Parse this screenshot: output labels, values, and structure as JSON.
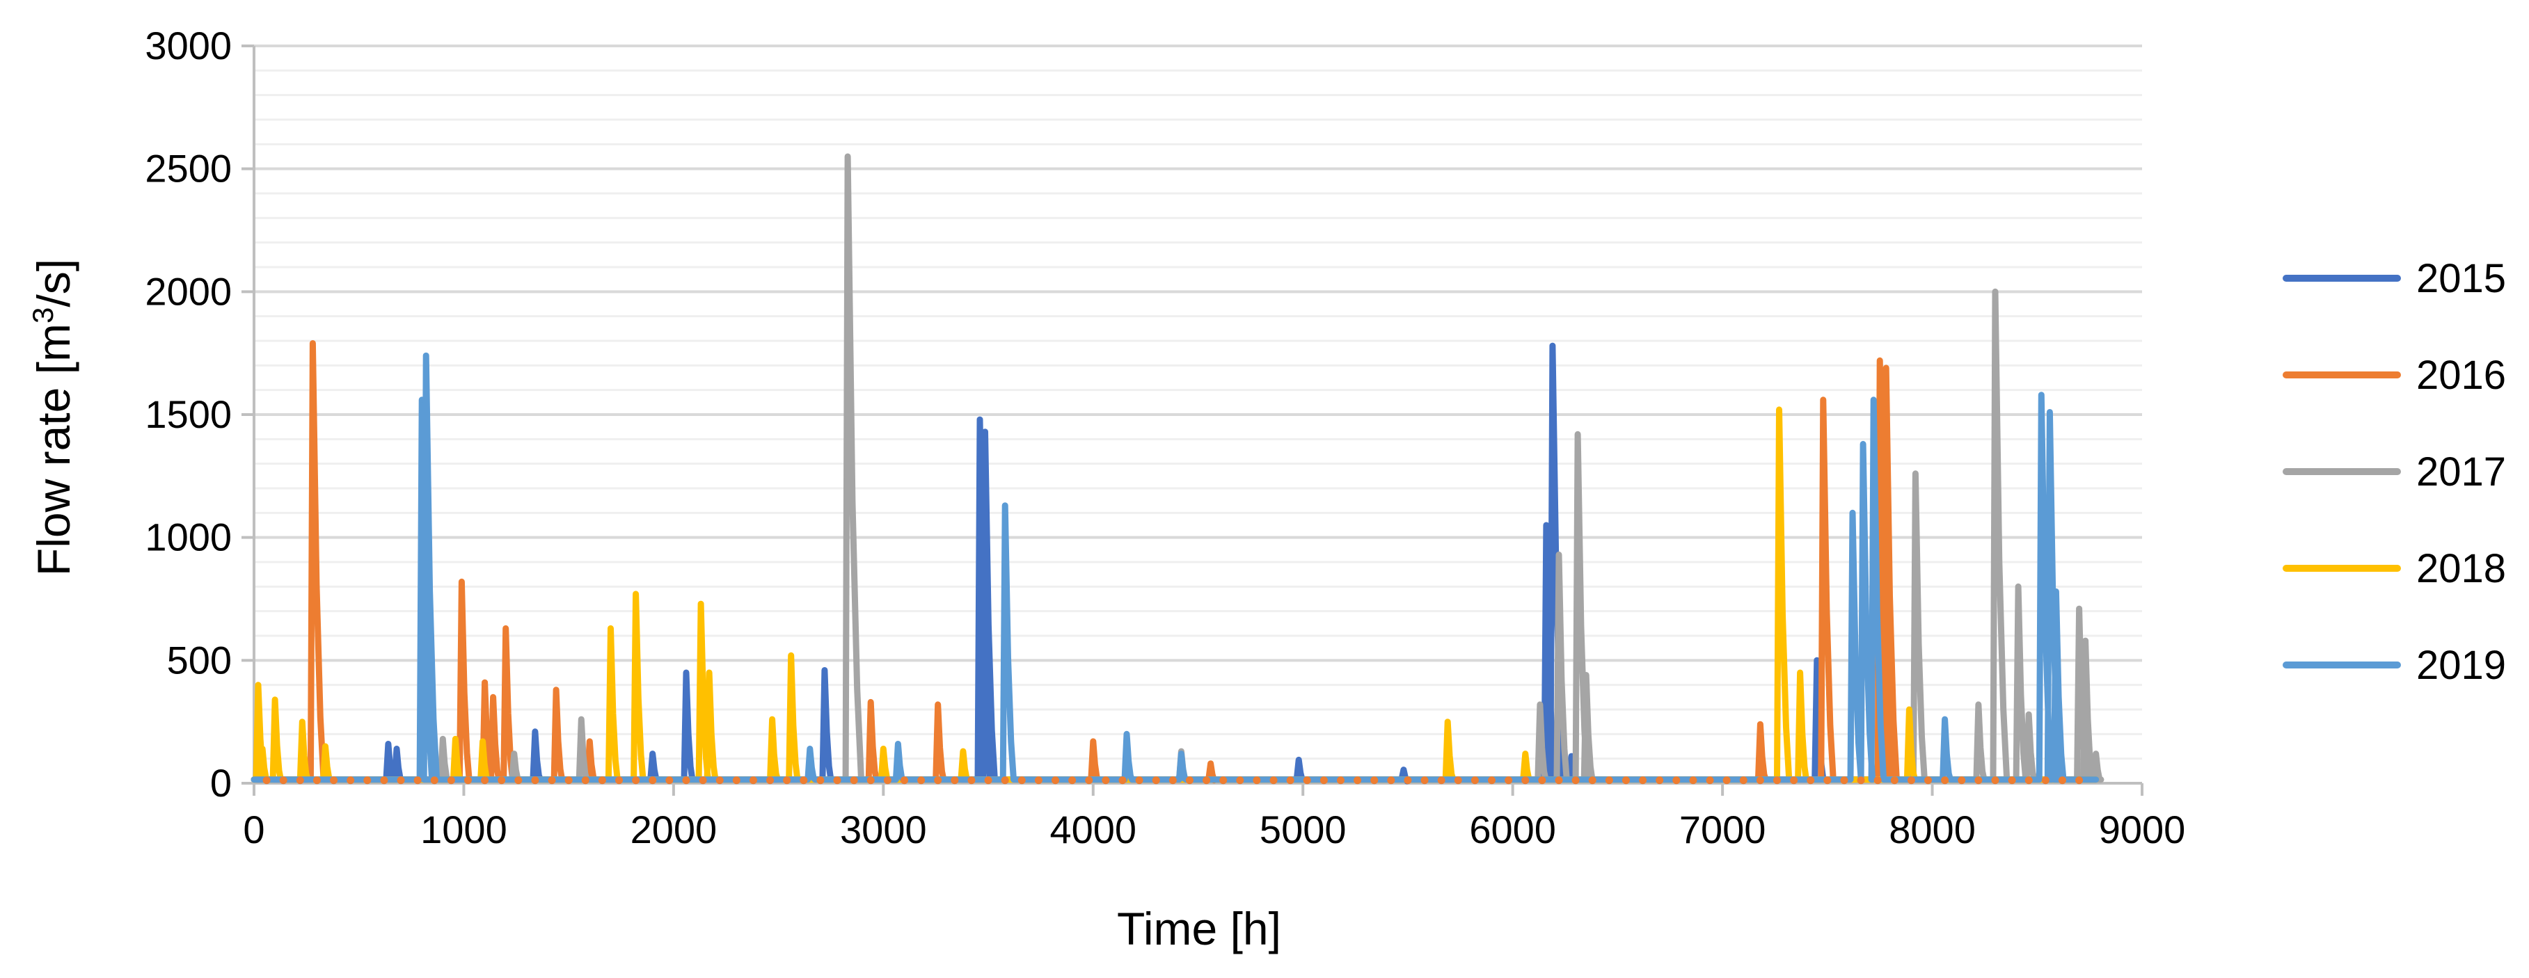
{
  "chart_data": {
    "type": "line",
    "title": "",
    "xlabel": "Time [h]",
    "ylabel_text": "Flow rate  [m",
    "ylabel_sup": "3",
    "ylabel_unit": "/s]",
    "xlim": [
      0,
      9000
    ],
    "ylim": [
      0,
      3000
    ],
    "x_ticks": [
      "0",
      "1000",
      "2000",
      "3000",
      "4000",
      "5000",
      "6000",
      "7000",
      "8000",
      "9000"
    ],
    "y_ticks": [
      "0",
      "500",
      "1000",
      "1500",
      "2000",
      "2500",
      "3000"
    ],
    "y_minor_step": 100,
    "grid": true,
    "legend_position": "right",
    "series": [
      {
        "name": "2015",
        "color": "#4472C4",
        "peaks": [
          [
            640,
            160
          ],
          [
            680,
            140
          ],
          [
            1340,
            210
          ],
          [
            1900,
            120
          ],
          [
            2060,
            450
          ],
          [
            2720,
            460
          ],
          [
            3460,
            1480
          ],
          [
            3485,
            1430
          ],
          [
            4980,
            95
          ],
          [
            5480,
            55
          ],
          [
            6160,
            1050
          ],
          [
            6190,
            1780
          ],
          [
            6230,
            250
          ],
          [
            6280,
            110
          ],
          [
            7450,
            500
          ]
        ]
      },
      {
        "name": "2016",
        "color": "#ED7D31",
        "peaks": [
          [
            280,
            1790
          ],
          [
            990,
            820
          ],
          [
            1100,
            410
          ],
          [
            1140,
            350
          ],
          [
            1200,
            630
          ],
          [
            1440,
            380
          ],
          [
            1600,
            170
          ],
          [
            2940,
            330
          ],
          [
            3260,
            320
          ],
          [
            4000,
            170
          ],
          [
            4560,
            80
          ],
          [
            7180,
            240
          ],
          [
            7480,
            1560
          ],
          [
            7750,
            1720
          ],
          [
            7780,
            1690
          ]
        ]
      },
      {
        "name": "2017",
        "color": "#A5A5A5",
        "peaks": [
          [
            900,
            180
          ],
          [
            1240,
            120
          ],
          [
            1560,
            260
          ],
          [
            2830,
            2550
          ],
          [
            4420,
            130
          ],
          [
            6130,
            320
          ],
          [
            6220,
            930
          ],
          [
            6310,
            1420
          ],
          [
            6350,
            440
          ],
          [
            7920,
            1260
          ],
          [
            8220,
            320
          ],
          [
            8300,
            2000
          ],
          [
            8410,
            800
          ],
          [
            8460,
            280
          ],
          [
            8700,
            710
          ],
          [
            8730,
            580
          ],
          [
            8780,
            120
          ]
        ]
      },
      {
        "name": "2018",
        "color": "#FFC000",
        "peaks": [
          [
            20,
            400
          ],
          [
            40,
            140
          ],
          [
            100,
            340
          ],
          [
            230,
            250
          ],
          [
            340,
            150
          ],
          [
            960,
            180
          ],
          [
            1090,
            170
          ],
          [
            1700,
            630
          ],
          [
            1820,
            770
          ],
          [
            2130,
            730
          ],
          [
            2170,
            450
          ],
          [
            2470,
            260
          ],
          [
            2560,
            520
          ],
          [
            3000,
            140
          ],
          [
            3380,
            130
          ],
          [
            5690,
            250
          ],
          [
            6060,
            120
          ],
          [
            7270,
            1520
          ],
          [
            7370,
            450
          ],
          [
            7890,
            300
          ]
        ]
      },
      {
        "name": "2019",
        "color": "#5B9BD5",
        "peaks": [
          [
            800,
            1560
          ],
          [
            820,
            1740
          ],
          [
            2650,
            140
          ],
          [
            3070,
            160
          ],
          [
            3580,
            1130
          ],
          [
            4160,
            200
          ],
          [
            4420,
            120
          ],
          [
            7620,
            1100
          ],
          [
            7670,
            1380
          ],
          [
            7720,
            1560
          ],
          [
            8060,
            260
          ],
          [
            8520,
            1580
          ],
          [
            8560,
            1510
          ],
          [
            8590,
            780
          ]
        ]
      }
    ]
  }
}
